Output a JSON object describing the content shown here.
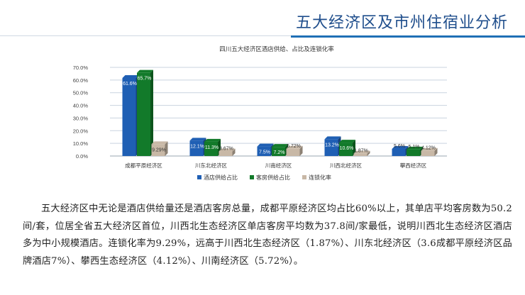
{
  "page": {
    "title": "五大经济区及市州住宿业分析",
    "paragraph": "五大经济区中无论是酒店供给量还是酒店客房总量，成都平原经济区均占比60%以上，其单店平均客房数为50.2间/套，位居全省五大经济区首位，川西北生态经济区单店客房平均数为37.8间/家最低，说明川西北生态经济区酒店多为中小规模酒店。连锁化率为9.29%，远高于川西北生态经济区（1.87%）、川东北经济区（3.6成都平原经济区品牌酒店7%）、攀西生态经济区（4.12%）、川南经济区（5.72%）。"
  },
  "colors": {
    "accent": "#1f6fb5",
    "series": [
      "#1f5fb4",
      "#127a2a",
      "#c8b8a6"
    ]
  },
  "chart_data": {
    "type": "bar",
    "title": "四川五大经济区酒店供给、占比及连锁化率",
    "categories": [
      "成都平原经济区",
      "川东北经济区",
      "川南经济区",
      "川西北经济区",
      "攀西经济区"
    ],
    "series": [
      {
        "name": "酒店供给占比",
        "values": [
          61.6,
          12.1,
          7.5,
          13.2,
          5.6
        ],
        "labels": [
          "61.6%",
          "12.1%",
          "7.5%",
          "13.2%",
          "5.6%"
        ]
      },
      {
        "name": "客房供给占比",
        "values": [
          65.7,
          11.3,
          7.2,
          10.6,
          5.1
        ],
        "labels": [
          "65.7%",
          "11.3%",
          "7.2%",
          "10.6%",
          "5.1%"
        ]
      },
      {
        "name": "连锁化率",
        "values": [
          9.29,
          3.67,
          5.72,
          1.87,
          4.12
        ],
        "labels": [
          "9.29%",
          "3.67%",
          "5.72%",
          "1.87%",
          "4.12%"
        ]
      }
    ],
    "ylim": [
      0,
      70
    ],
    "yticks": [
      "0.0%",
      "10.0%",
      "20.0%",
      "30.0%",
      "40.0%",
      "50.0%",
      "60.0%",
      "70.0%"
    ],
    "grid": true,
    "legend_position": "bottom"
  }
}
